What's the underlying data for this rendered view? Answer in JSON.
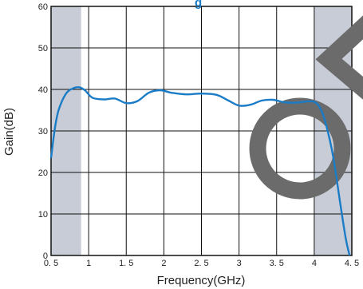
{
  "chart_data": {
    "type": "line",
    "title_fragment": "g",
    "xlabel": "Frequency(GHz)",
    "ylabel": "Gain(dB)",
    "xlim": [
      0.5,
      4.5
    ],
    "ylim": [
      0,
      60
    ],
    "x_ticks": [
      0.5,
      1,
      1.5,
      2,
      2.5,
      3,
      3.5,
      4,
      4.5
    ],
    "x_tick_labels": [
      "0. 5",
      "1",
      "1. 5",
      "2",
      "2. 5",
      "3",
      "3. 5",
      "4",
      "4. 5"
    ],
    "y_ticks": [
      0,
      10,
      20,
      30,
      40,
      50,
      60
    ],
    "y_tick_labels": [
      "0",
      "10",
      "20",
      "30",
      "40",
      "50",
      "60"
    ],
    "grid": true,
    "shaded_ranges": [
      [
        0.5,
        0.9
      ],
      [
        4.0,
        4.5
      ]
    ],
    "shade_color": "#c8ccd6",
    "series": [
      {
        "color": "#1a7cc7",
        "x": [
          0.5,
          0.55,
          0.6,
          0.7,
          0.8,
          0.88,
          0.95,
          1.05,
          1.2,
          1.35,
          1.5,
          1.65,
          1.8,
          1.95,
          2.1,
          2.3,
          2.5,
          2.7,
          2.85,
          3.0,
          3.15,
          3.3,
          3.45,
          3.6,
          3.75,
          3.9,
          4.0,
          4.08,
          4.15,
          4.25,
          4.35,
          4.42,
          4.47
        ],
        "y": [
          23.5,
          30.5,
          35,
          39,
          40.3,
          40.5,
          39.8,
          38,
          37.6,
          37.8,
          36.7,
          37.2,
          39.2,
          39.8,
          39.2,
          38.8,
          39.0,
          38.7,
          37.4,
          36.1,
          36.3,
          37.3,
          37.5,
          36.9,
          36.8,
          37.1,
          37.0,
          35.5,
          32,
          24,
          12,
          4,
          0
        ]
      }
    ]
  },
  "decor": {
    "overlay_color": "#6b6b6b"
  }
}
